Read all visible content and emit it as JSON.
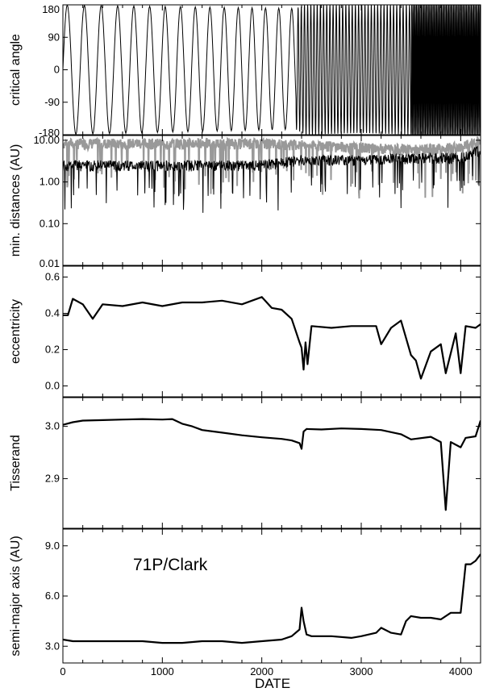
{
  "chart_data": [
    {
      "type": "line",
      "ylabel": "critical angle",
      "ylim": [
        -180,
        180
      ],
      "yticks": [
        180,
        90,
        0,
        -90,
        -180
      ],
      "yticklabels": [
        "180",
        "90",
        "0",
        "-90",
        "-180"
      ],
      "xlim": [
        0,
        4200
      ],
      "series": [
        {
          "color": "#000000",
          "style": "oscillating libration (period ~170 to 2340, then fast circulation)",
          "x": [
            0,
            2340,
            2440,
            3000,
            3500,
            4200
          ],
          "y_min": [
            -180,
            -165,
            -180,
            -175,
            -180,
            -180
          ],
          "y_max": [
            180,
            170,
            180,
            180,
            180,
            180
          ]
        }
      ]
    },
    {
      "type": "line",
      "ylabel": "min. distances (AU)",
      "yscale": "log",
      "ylim": [
        0.01,
        13
      ],
      "yticks": [
        10,
        1,
        0.1,
        0.01
      ],
      "yticklabels": [
        "10.00",
        "1.00",
        "0.10",
        "0.01"
      ],
      "xlim": [
        0,
        4200
      ],
      "series": [
        {
          "color": "#999999",
          "x": [
            0,
            1000,
            2000,
            2500,
            3000,
            3500,
            4000,
            4200
          ],
          "y": [
            10,
            10,
            10,
            9,
            8,
            7,
            8,
            12
          ]
        },
        {
          "color": "#000000",
          "x": [
            0,
            1000,
            2000,
            2400,
            3000,
            3500,
            4000,
            4200
          ],
          "y": [
            3,
            3,
            3,
            4,
            4,
            4.5,
            4.5,
            7
          ]
        }
      ]
    },
    {
      "type": "line",
      "ylabel": "eccentricity",
      "ylim": [
        -0.06,
        0.66
      ],
      "yticks": [
        0.6,
        0.4,
        0.2,
        0.0
      ],
      "yticklabels": [
        "0.6",
        "0.4",
        "0.2",
        "0.0"
      ],
      "xlim": [
        0,
        4200
      ],
      "series": [
        {
          "color": "#000000",
          "x": [
            0,
            50,
            100,
            200,
            300,
            400,
            600,
            800,
            1000,
            1200,
            1400,
            1600,
            1800,
            2000,
            2100,
            2200,
            2300,
            2380,
            2400,
            2420,
            2440,
            2460,
            2500,
            2700,
            2900,
            3000,
            3150,
            3200,
            3300,
            3400,
            3500,
            3550,
            3600,
            3700,
            3800,
            3850,
            3950,
            4000,
            4050,
            4150,
            4200
          ],
          "y": [
            0.39,
            0.39,
            0.48,
            0.45,
            0.37,
            0.45,
            0.44,
            0.46,
            0.44,
            0.46,
            0.46,
            0.47,
            0.45,
            0.49,
            0.43,
            0.42,
            0.37,
            0.24,
            0.21,
            0.09,
            0.24,
            0.12,
            0.33,
            0.32,
            0.33,
            0.33,
            0.33,
            0.23,
            0.32,
            0.36,
            0.17,
            0.14,
            0.04,
            0.19,
            0.23,
            0.07,
            0.29,
            0.07,
            0.33,
            0.32,
            0.34
          ]
        }
      ]
    },
    {
      "type": "line",
      "ylabel": "Tisserand",
      "ylim": [
        2.805,
        3.055
      ],
      "yticks": [
        3.0,
        2.9
      ],
      "yticklabels": [
        "3.0",
        "2.9"
      ],
      "xlim": [
        0,
        4200
      ],
      "series": [
        {
          "color": "#000000",
          "x": [
            0,
            100,
            200,
            400,
            600,
            800,
            1000,
            1100,
            1200,
            1300,
            1400,
            1600,
            1800,
            2000,
            2200,
            2300,
            2380,
            2400,
            2420,
            2450,
            2600,
            2800,
            3000,
            3200,
            3400,
            3500,
            3700,
            3800,
            3850,
            3900,
            4000,
            4050,
            4150,
            4200
          ],
          "y": [
            3.003,
            3.008,
            3.011,
            3.012,
            3.013,
            3.014,
            3.013,
            3.014,
            3.005,
            3.0,
            2.993,
            2.988,
            2.983,
            2.979,
            2.976,
            2.973,
            2.968,
            2.957,
            2.99,
            2.995,
            2.994,
            2.996,
            2.995,
            2.993,
            2.985,
            2.975,
            2.98,
            2.97,
            2.84,
            2.97,
            2.96,
            2.978,
            2.981,
            3.011
          ]
        }
      ]
    },
    {
      "type": "line",
      "ylabel": "semi-major axis (AU)",
      "xlabel": "DATE",
      "ylim": [
        2.0,
        10.0
      ],
      "yticks": [
        9.0,
        6.0,
        3.0
      ],
      "yticklabels": [
        "9.0",
        "6.0",
        "3.0"
      ],
      "xlim": [
        0,
        4200
      ],
      "xticks": [
        0,
        1000,
        2000,
        3000,
        4000
      ],
      "xticklabels": [
        "0",
        "1000",
        "2000",
        "3000",
        "4000"
      ],
      "annotation": "71P/Clark",
      "series": [
        {
          "color": "#000000",
          "x": [
            0,
            100,
            200,
            400,
            600,
            800,
            1000,
            1200,
            1400,
            1600,
            1800,
            2000,
            2200,
            2300,
            2380,
            2400,
            2420,
            2450,
            2500,
            2700,
            2900,
            3000,
            3150,
            3200,
            3300,
            3400,
            3450,
            3500,
            3600,
            3700,
            3800,
            3900,
            4000,
            4050,
            4100,
            4150,
            4200
          ],
          "y": [
            3.4,
            3.3,
            3.3,
            3.3,
            3.3,
            3.3,
            3.2,
            3.2,
            3.3,
            3.3,
            3.2,
            3.3,
            3.4,
            3.6,
            4.0,
            5.3,
            4.5,
            3.7,
            3.6,
            3.6,
            3.5,
            3.6,
            3.8,
            4.1,
            3.8,
            3.7,
            4.5,
            4.8,
            4.7,
            4.7,
            4.6,
            5.0,
            5.0,
            7.9,
            7.9,
            8.1,
            8.5
          ]
        }
      ]
    }
  ]
}
